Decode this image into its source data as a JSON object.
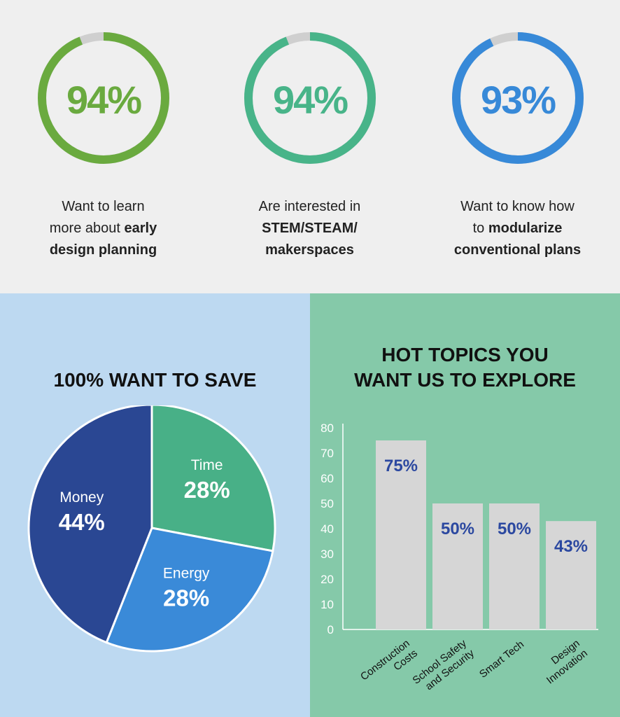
{
  "stats": [
    {
      "value": "94%",
      "percent": 94,
      "color": "#6aaa3f",
      "caption_pre": "Want to learn more about ",
      "caption_bold": "early design planning"
    },
    {
      "value": "94%",
      "percent": 94,
      "color": "#48b489",
      "caption_pre": "Are interested in ",
      "caption_bold": "STEM/STEAM/ makerspaces"
    },
    {
      "value": "93%",
      "percent": 93,
      "color": "#3789d8",
      "caption_pre": "Want to know how to ",
      "caption_bold": "modularize conventional plans"
    }
  ],
  "ring_track_color": "#cfcfcf",
  "chart_data": [
    {
      "type": "pie",
      "title": "100% WANT TO SAVE",
      "slices": [
        {
          "label": "Time",
          "value": 28,
          "value_label": "28%",
          "color": "#48b087"
        },
        {
          "label": "Energy",
          "value": 28,
          "value_label": "28%",
          "color": "#3a8ad8"
        },
        {
          "label": "Money",
          "value": 44,
          "value_label": "44%",
          "color": "#2a4793"
        }
      ]
    },
    {
      "type": "bar",
      "title": "HOT TOPICS YOU WANT US TO EXPLORE",
      "categories": [
        "Construction Costs",
        "School Safety and Security",
        "Smart Tech",
        "Design Innovation"
      ],
      "values": [
        75,
        50,
        50,
        43
      ],
      "value_labels": [
        "75%",
        "50%",
        "50%",
        "43%"
      ],
      "ylim": [
        0,
        80
      ],
      "yticks": [
        0,
        10,
        20,
        30,
        40,
        50,
        60,
        70,
        80
      ],
      "bar_color": "#d6d6d6",
      "label_color": "#2b48a0"
    }
  ]
}
